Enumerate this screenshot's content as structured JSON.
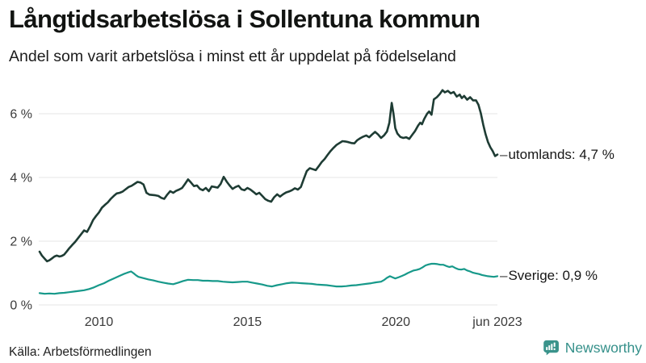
{
  "header": {
    "title": "Långtidsarbetslösa i Sollentuna kommun",
    "subtitle": "Andel som varit arbetslösa i minst ett år uppdelat på födelseland"
  },
  "footer": {
    "source": "Källa: Arbetsförmedlingen",
    "brand": "Newsworthy",
    "brand_color": "#35908a",
    "logo_icon": "bar-chart-speech-bubble"
  },
  "chart_data": {
    "type": "line",
    "title": "Långtidsarbetslösa i Sollentuna kommun",
    "subtitle": "Andel som varit arbetslösa i minst ett år uppdelat på födelseland",
    "xlabel": "",
    "ylabel": "",
    "x_domain": [
      2008.0,
      2023.42
    ],
    "y_domain": [
      0,
      7.0
    ],
    "grid": "horizontal",
    "gridline_color": "#e4e4e4",
    "legend_position": "line-end-labels",
    "x_ticks": [
      {
        "v": 2010,
        "label": "2010"
      },
      {
        "v": 2015,
        "label": "2015"
      },
      {
        "v": 2020,
        "label": "2020"
      },
      {
        "v": 2023.42,
        "label": "jun 2023"
      }
    ],
    "y_ticks": [
      {
        "v": 0,
        "label": "0 %"
      },
      {
        "v": 2,
        "label": "2 %"
      },
      {
        "v": 4,
        "label": "4 %"
      },
      {
        "v": 6,
        "label": "6 %"
      }
    ],
    "series": [
      {
        "name": "utomlands",
        "color": "#1e3c34",
        "width": 2.6,
        "tick_glyph": "–",
        "end_label": "utomlands: 4,7 %",
        "end_value": "4,7 %",
        "points": [
          [
            2008.0,
            1.67
          ],
          [
            2008.08,
            1.55
          ],
          [
            2008.17,
            1.45
          ],
          [
            2008.25,
            1.37
          ],
          [
            2008.33,
            1.4
          ],
          [
            2008.42,
            1.46
          ],
          [
            2008.5,
            1.52
          ],
          [
            2008.58,
            1.55
          ],
          [
            2008.67,
            1.52
          ],
          [
            2008.75,
            1.54
          ],
          [
            2008.83,
            1.58
          ],
          [
            2008.92,
            1.68
          ],
          [
            2009.0,
            1.78
          ],
          [
            2009.1,
            1.88
          ],
          [
            2009.2,
            1.98
          ],
          [
            2009.3,
            2.1
          ],
          [
            2009.4,
            2.22
          ],
          [
            2009.5,
            2.34
          ],
          [
            2009.6,
            2.29
          ],
          [
            2009.7,
            2.46
          ],
          [
            2009.8,
            2.66
          ],
          [
            2009.9,
            2.79
          ],
          [
            2010.0,
            2.9
          ],
          [
            2010.1,
            3.05
          ],
          [
            2010.2,
            3.14
          ],
          [
            2010.3,
            3.22
          ],
          [
            2010.4,
            3.33
          ],
          [
            2010.5,
            3.42
          ],
          [
            2010.6,
            3.5
          ],
          [
            2010.7,
            3.52
          ],
          [
            2010.8,
            3.56
          ],
          [
            2010.9,
            3.63
          ],
          [
            2011.0,
            3.7
          ],
          [
            2011.1,
            3.74
          ],
          [
            2011.2,
            3.8
          ],
          [
            2011.3,
            3.86
          ],
          [
            2011.4,
            3.84
          ],
          [
            2011.5,
            3.78
          ],
          [
            2011.6,
            3.52
          ],
          [
            2011.7,
            3.46
          ],
          [
            2011.8,
            3.45
          ],
          [
            2011.9,
            3.44
          ],
          [
            2012.0,
            3.42
          ],
          [
            2012.1,
            3.36
          ],
          [
            2012.2,
            3.33
          ],
          [
            2012.3,
            3.46
          ],
          [
            2012.4,
            3.57
          ],
          [
            2012.5,
            3.52
          ],
          [
            2012.6,
            3.58
          ],
          [
            2012.7,
            3.62
          ],
          [
            2012.8,
            3.67
          ],
          [
            2012.9,
            3.8
          ],
          [
            2013.0,
            3.94
          ],
          [
            2013.1,
            3.84
          ],
          [
            2013.2,
            3.73
          ],
          [
            2013.3,
            3.75
          ],
          [
            2013.4,
            3.64
          ],
          [
            2013.5,
            3.6
          ],
          [
            2013.6,
            3.67
          ],
          [
            2013.7,
            3.57
          ],
          [
            2013.8,
            3.72
          ],
          [
            2013.9,
            3.7
          ],
          [
            2014.0,
            3.68
          ],
          [
            2014.1,
            3.8
          ],
          [
            2014.2,
            4.02
          ],
          [
            2014.3,
            3.87
          ],
          [
            2014.4,
            3.75
          ],
          [
            2014.5,
            3.64
          ],
          [
            2014.6,
            3.7
          ],
          [
            2014.7,
            3.74
          ],
          [
            2014.8,
            3.63
          ],
          [
            2014.9,
            3.6
          ],
          [
            2015.0,
            3.67
          ],
          [
            2015.1,
            3.62
          ],
          [
            2015.2,
            3.55
          ],
          [
            2015.3,
            3.47
          ],
          [
            2015.4,
            3.52
          ],
          [
            2015.5,
            3.42
          ],
          [
            2015.6,
            3.32
          ],
          [
            2015.7,
            3.27
          ],
          [
            2015.8,
            3.24
          ],
          [
            2015.9,
            3.38
          ],
          [
            2016.0,
            3.47
          ],
          [
            2016.1,
            3.4
          ],
          [
            2016.2,
            3.47
          ],
          [
            2016.3,
            3.53
          ],
          [
            2016.4,
            3.56
          ],
          [
            2016.5,
            3.6
          ],
          [
            2016.6,
            3.66
          ],
          [
            2016.7,
            3.62
          ],
          [
            2016.8,
            3.7
          ],
          [
            2016.9,
            3.96
          ],
          [
            2017.0,
            4.2
          ],
          [
            2017.1,
            4.29
          ],
          [
            2017.2,
            4.26
          ],
          [
            2017.3,
            4.23
          ],
          [
            2017.4,
            4.35
          ],
          [
            2017.5,
            4.48
          ],
          [
            2017.6,
            4.58
          ],
          [
            2017.7,
            4.71
          ],
          [
            2017.8,
            4.83
          ],
          [
            2017.9,
            4.93
          ],
          [
            2018.0,
            5.02
          ],
          [
            2018.1,
            5.08
          ],
          [
            2018.2,
            5.14
          ],
          [
            2018.3,
            5.13
          ],
          [
            2018.4,
            5.11
          ],
          [
            2018.5,
            5.08
          ],
          [
            2018.6,
            5.07
          ],
          [
            2018.7,
            5.17
          ],
          [
            2018.8,
            5.23
          ],
          [
            2018.9,
            5.28
          ],
          [
            2019.0,
            5.32
          ],
          [
            2019.1,
            5.26
          ],
          [
            2019.2,
            5.35
          ],
          [
            2019.3,
            5.43
          ],
          [
            2019.4,
            5.35
          ],
          [
            2019.5,
            5.24
          ],
          [
            2019.6,
            5.32
          ],
          [
            2019.7,
            5.44
          ],
          [
            2019.78,
            5.72
          ],
          [
            2019.86,
            6.34
          ],
          [
            2019.92,
            6.0
          ],
          [
            2019.98,
            5.55
          ],
          [
            2020.05,
            5.38
          ],
          [
            2020.15,
            5.27
          ],
          [
            2020.25,
            5.24
          ],
          [
            2020.35,
            5.26
          ],
          [
            2020.45,
            5.21
          ],
          [
            2020.55,
            5.34
          ],
          [
            2020.65,
            5.46
          ],
          [
            2020.75,
            5.63
          ],
          [
            2020.82,
            5.72
          ],
          [
            2020.88,
            5.67
          ],
          [
            2020.95,
            5.83
          ],
          [
            2021.05,
            6.0
          ],
          [
            2021.12,
            6.07
          ],
          [
            2021.2,
            5.97
          ],
          [
            2021.28,
            6.45
          ],
          [
            2021.38,
            6.52
          ],
          [
            2021.48,
            6.62
          ],
          [
            2021.57,
            6.74
          ],
          [
            2021.65,
            6.67
          ],
          [
            2021.75,
            6.72
          ],
          [
            2021.85,
            6.64
          ],
          [
            2021.95,
            6.68
          ],
          [
            2022.05,
            6.54
          ],
          [
            2022.15,
            6.6
          ],
          [
            2022.22,
            6.49
          ],
          [
            2022.3,
            6.56
          ],
          [
            2022.4,
            6.44
          ],
          [
            2022.5,
            6.52
          ],
          [
            2022.6,
            6.42
          ],
          [
            2022.7,
            6.42
          ],
          [
            2022.78,
            6.28
          ],
          [
            2022.86,
            6.02
          ],
          [
            2022.94,
            5.66
          ],
          [
            2023.02,
            5.36
          ],
          [
            2023.1,
            5.12
          ],
          [
            2023.18,
            4.95
          ],
          [
            2023.26,
            4.83
          ],
          [
            2023.34,
            4.67
          ],
          [
            2023.42,
            4.72
          ]
        ]
      },
      {
        "name": "Sverige",
        "color": "#17998a",
        "width": 2.2,
        "tick_glyph": "–",
        "end_label": "Sverige: 0,9 %",
        "end_value": "0,9 %",
        "points": [
          [
            2008.0,
            0.37
          ],
          [
            2008.17,
            0.35
          ],
          [
            2008.33,
            0.36
          ],
          [
            2008.5,
            0.35
          ],
          [
            2008.67,
            0.37
          ],
          [
            2008.83,
            0.38
          ],
          [
            2009.0,
            0.4
          ],
          [
            2009.17,
            0.42
          ],
          [
            2009.33,
            0.44
          ],
          [
            2009.5,
            0.46
          ],
          [
            2009.67,
            0.5
          ],
          [
            2009.83,
            0.55
          ],
          [
            2010.0,
            0.62
          ],
          [
            2010.17,
            0.68
          ],
          [
            2010.33,
            0.76
          ],
          [
            2010.5,
            0.83
          ],
          [
            2010.67,
            0.9
          ],
          [
            2010.83,
            0.97
          ],
          [
            2010.95,
            1.01
          ],
          [
            2011.08,
            1.05
          ],
          [
            2011.17,
            0.99
          ],
          [
            2011.25,
            0.93
          ],
          [
            2011.33,
            0.88
          ],
          [
            2011.5,
            0.84
          ],
          [
            2011.67,
            0.8
          ],
          [
            2011.83,
            0.77
          ],
          [
            2012.0,
            0.73
          ],
          [
            2012.17,
            0.7
          ],
          [
            2012.33,
            0.67
          ],
          [
            2012.5,
            0.65
          ],
          [
            2012.67,
            0.7
          ],
          [
            2012.83,
            0.75
          ],
          [
            2013.0,
            0.79
          ],
          [
            2013.17,
            0.78
          ],
          [
            2013.33,
            0.78
          ],
          [
            2013.5,
            0.76
          ],
          [
            2013.67,
            0.76
          ],
          [
            2013.83,
            0.75
          ],
          [
            2014.0,
            0.75
          ],
          [
            2014.17,
            0.73
          ],
          [
            2014.33,
            0.72
          ],
          [
            2014.5,
            0.71
          ],
          [
            2014.67,
            0.72
          ],
          [
            2014.83,
            0.73
          ],
          [
            2015.0,
            0.73
          ],
          [
            2015.17,
            0.7
          ],
          [
            2015.33,
            0.67
          ],
          [
            2015.5,
            0.64
          ],
          [
            2015.67,
            0.6
          ],
          [
            2015.83,
            0.58
          ],
          [
            2016.0,
            0.62
          ],
          [
            2016.17,
            0.65
          ],
          [
            2016.33,
            0.68
          ],
          [
            2016.5,
            0.7
          ],
          [
            2016.67,
            0.69
          ],
          [
            2016.83,
            0.68
          ],
          [
            2017.0,
            0.67
          ],
          [
            2017.17,
            0.66
          ],
          [
            2017.33,
            0.64
          ],
          [
            2017.5,
            0.63
          ],
          [
            2017.67,
            0.62
          ],
          [
            2017.83,
            0.6
          ],
          [
            2018.0,
            0.58
          ],
          [
            2018.17,
            0.58
          ],
          [
            2018.33,
            0.59
          ],
          [
            2018.5,
            0.61
          ],
          [
            2018.67,
            0.62
          ],
          [
            2018.83,
            0.64
          ],
          [
            2019.0,
            0.66
          ],
          [
            2019.17,
            0.68
          ],
          [
            2019.33,
            0.71
          ],
          [
            2019.5,
            0.73
          ],
          [
            2019.6,
            0.78
          ],
          [
            2019.7,
            0.85
          ],
          [
            2019.8,
            0.9
          ],
          [
            2019.9,
            0.86
          ],
          [
            2019.98,
            0.83
          ],
          [
            2020.1,
            0.87
          ],
          [
            2020.2,
            0.91
          ],
          [
            2020.3,
            0.95
          ],
          [
            2020.4,
            1.0
          ],
          [
            2020.5,
            1.04
          ],
          [
            2020.6,
            1.08
          ],
          [
            2020.7,
            1.1
          ],
          [
            2020.8,
            1.13
          ],
          [
            2020.9,
            1.18
          ],
          [
            2021.0,
            1.24
          ],
          [
            2021.1,
            1.27
          ],
          [
            2021.2,
            1.29
          ],
          [
            2021.3,
            1.29
          ],
          [
            2021.4,
            1.28
          ],
          [
            2021.5,
            1.26
          ],
          [
            2021.6,
            1.26
          ],
          [
            2021.7,
            1.22
          ],
          [
            2021.8,
            1.19
          ],
          [
            2021.9,
            1.21
          ],
          [
            2022.0,
            1.16
          ],
          [
            2022.1,
            1.12
          ],
          [
            2022.2,
            1.11
          ],
          [
            2022.3,
            1.13
          ],
          [
            2022.4,
            1.08
          ],
          [
            2022.5,
            1.05
          ],
          [
            2022.6,
            1.01
          ],
          [
            2022.7,
            0.99
          ],
          [
            2022.8,
            0.97
          ],
          [
            2022.9,
            0.94
          ],
          [
            2023.0,
            0.92
          ],
          [
            2023.1,
            0.9
          ],
          [
            2023.2,
            0.89
          ],
          [
            2023.3,
            0.88
          ],
          [
            2023.42,
            0.9
          ]
        ]
      }
    ]
  }
}
